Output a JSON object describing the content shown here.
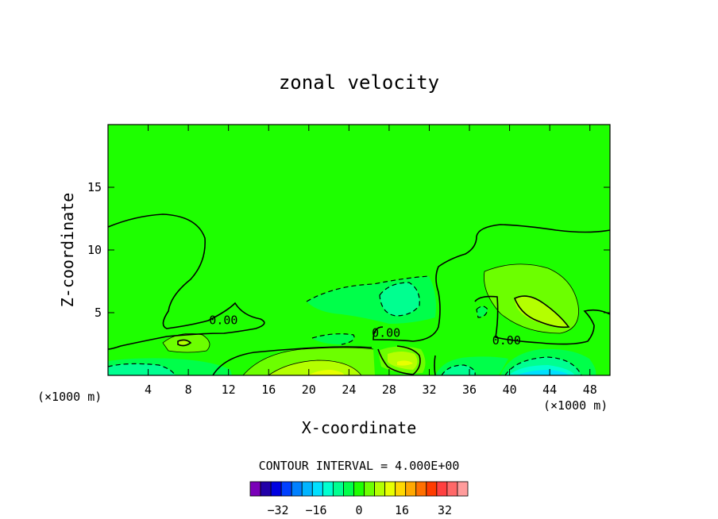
{
  "chart_data": {
    "type": "contour",
    "title": "zonal velocity",
    "xlabel": "X-coordinate",
    "ylabel": "Z-coordinate",
    "x_units_left": "(×1000 m)",
    "x_units_right": "(×1000 m)",
    "xlim": [
      0,
      50
    ],
    "ylim": [
      0,
      20
    ],
    "x_ticks": [
      "4",
      "8",
      "12",
      "16",
      "20",
      "24",
      "28",
      "32",
      "36",
      "40",
      "44",
      "48"
    ],
    "x_tick_values": [
      4,
      8,
      12,
      16,
      20,
      24,
      28,
      32,
      36,
      40,
      44,
      48
    ],
    "y_ticks": [
      "5",
      "10",
      "15"
    ],
    "y_tick_values": [
      5,
      10,
      15
    ],
    "contour_labels": [
      {
        "text": "0.00",
        "x": 11.5,
        "z": 4.4
      },
      {
        "text": "0.00",
        "x": 27.7,
        "z": 3.4
      },
      {
        "text": "0.00",
        "x": 39.7,
        "z": 2.8
      }
    ],
    "contour_interval_label": "CONTOUR INTERVAL = 4.000E+00",
    "colorbar": {
      "tick_labels": [
        "−32",
        "−16",
        "0",
        "16",
        "32"
      ],
      "colors": [
        "#7a00b8",
        "#2200a8",
        "#0000e0",
        "#0040ff",
        "#0080ff",
        "#00b4ff",
        "#00e0ff",
        "#00ffd0",
        "#00ff90",
        "#00ff4a",
        "#1eff00",
        "#6cff00",
        "#b4ff00",
        "#e8ff00",
        "#ffd800",
        "#ffa800",
        "#ff7000",
        "#ff3c00",
        "#ff4040",
        "#ff6868",
        "#ff9c9c"
      ]
    },
    "field_colors": {
      "background": "#1eff00",
      "light_positive": "#6cff00",
      "positive": "#b4ff00",
      "strong_positive": "#e8ff00",
      "weak_negative": "#00ff4a",
      "negative": "#00ff90",
      "strong_negative": "#00ffd0",
      "very_negative": "#00e0ff"
    }
  }
}
